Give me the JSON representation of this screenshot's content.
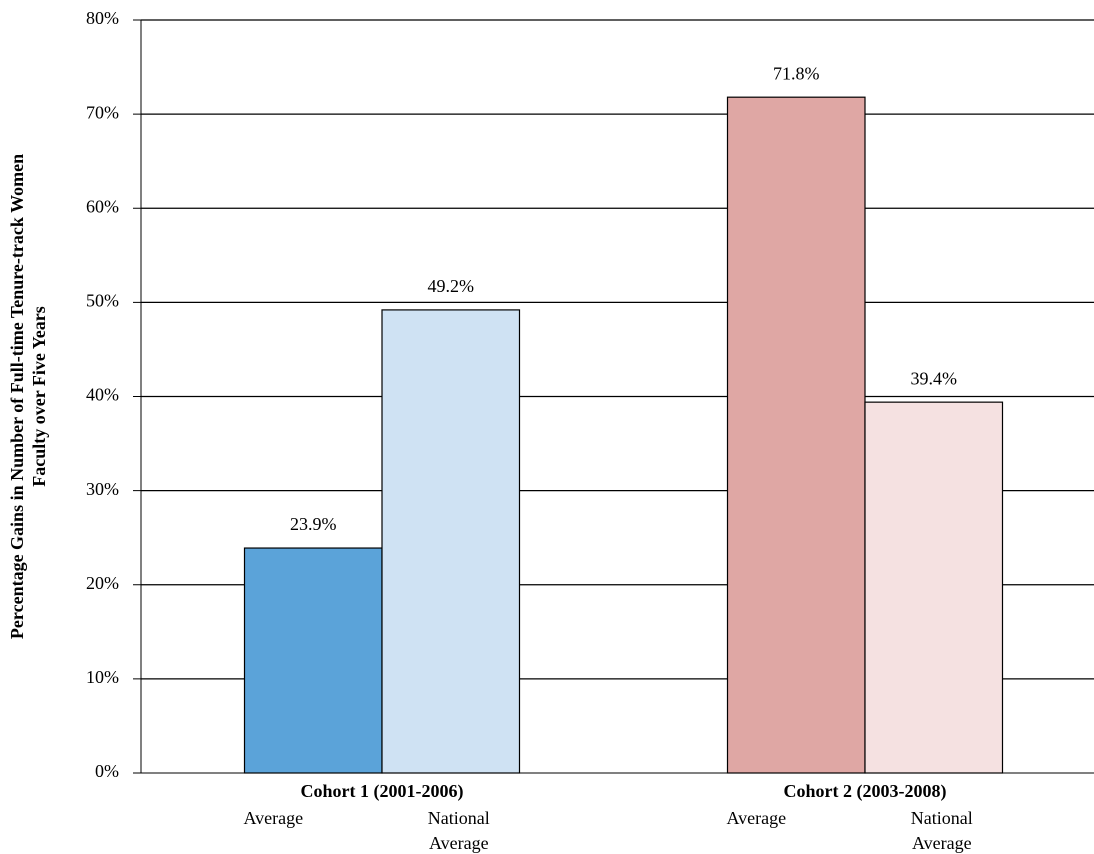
{
  "chart_data": {
    "type": "bar",
    "ylabel": [
      "Percentage Gains in Number of Full-time Tenure-track Women",
      "Faculty over Five Years"
    ],
    "categories": [
      "Cohort 1 (2001-2006)",
      "Cohort 2 (2003-2008)"
    ],
    "series": [
      {
        "name": "Average",
        "colors": [
          "#5ba3d9",
          "#dfa7a4"
        ],
        "values": [
          23.9,
          71.8
        ],
        "value_labels": [
          "23.9%",
          "71.8%"
        ]
      },
      {
        "name": "National Average",
        "colors": [
          "#cfe2f3",
          "#f5e1e1"
        ],
        "values": [
          49.2,
          39.4
        ],
        "value_labels": [
          "49.2%",
          "39.4%"
        ]
      }
    ],
    "ylim": [
      0,
      80
    ],
    "yticks": [
      {
        "value": 0,
        "label": "0%"
      },
      {
        "value": 10,
        "label": "10%"
      },
      {
        "value": 20,
        "label": "20%"
      },
      {
        "value": 30,
        "label": "30%"
      },
      {
        "value": 40,
        "label": "40%"
      },
      {
        "value": 50,
        "label": "50%"
      },
      {
        "value": 60,
        "label": "60%"
      },
      {
        "value": 70,
        "label": "70%"
      },
      {
        "value": 80,
        "label": "80%"
      }
    ],
    "grid": true
  }
}
